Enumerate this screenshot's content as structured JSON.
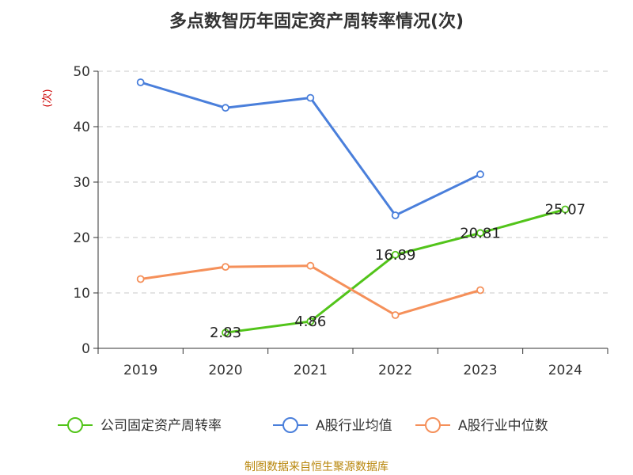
{
  "chart_data": {
    "type": "line",
    "title": "多点数智历年固定资产周转率情况(次)",
    "ylabel": "(次)",
    "xlabel": "",
    "categories": [
      "2019",
      "2020",
      "2021",
      "2022",
      "2023",
      "2024"
    ],
    "ylim": [
      0,
      50
    ],
    "yticks": [
      0,
      10,
      20,
      30,
      40,
      50
    ],
    "grid": "horizontal-dashed",
    "legend_placement": "bottom",
    "series": [
      {
        "name": "公司固定资产周转率",
        "color": "#52c41a",
        "values": [
          null,
          2.83,
          4.86,
          16.89,
          20.81,
          25.07
        ],
        "labels": [
          null,
          "2.83",
          "4.86",
          "16.89",
          "20.81",
          "25.07"
        ]
      },
      {
        "name": "A股行业均值",
        "color": "#4a7fdb",
        "values": [
          48.0,
          43.4,
          45.2,
          24.0,
          31.4,
          null
        ]
      },
      {
        "name": "A股行业中位数",
        "color": "#f5905a",
        "values": [
          12.5,
          14.7,
          14.9,
          6.0,
          10.5,
          null
        ]
      }
    ],
    "source": "制图数据来自恒生聚源数据库"
  }
}
